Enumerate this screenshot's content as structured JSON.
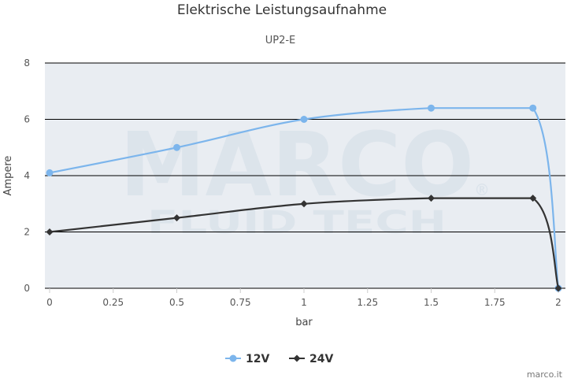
{
  "chart_data": {
    "type": "line",
    "title": "Elektrische Leistungsaufnahme",
    "subtitle": "UP2-E",
    "xlabel": "bar",
    "ylabel": "Ampere",
    "xlim": [
      0,
      2
    ],
    "ylim": [
      0,
      8
    ],
    "x_ticks": [
      "0",
      "0.25",
      "0.5",
      "0.75",
      "1",
      "1.25",
      "1.5",
      "1.75",
      "2"
    ],
    "y_ticks": [
      "0",
      "2",
      "4",
      "6",
      "8"
    ],
    "grid": true,
    "legend": "bottom-center",
    "watermark": {
      "line1": "MARCO",
      "line2": "FLUID TECH",
      "mark": "®"
    },
    "series": [
      {
        "name": "12V",
        "color": "#7cb5ec",
        "marker": "circle",
        "points": [
          {
            "x": 0,
            "y": 4.1
          },
          {
            "x": 0.5,
            "y": 5.0
          },
          {
            "x": 1.0,
            "y": 6.0
          },
          {
            "x": 1.5,
            "y": 6.4
          },
          {
            "x": 1.9,
            "y": 6.4
          },
          {
            "x": 2.0,
            "y": 0
          }
        ]
      },
      {
        "name": "24V",
        "color": "#333333",
        "marker": "diamond",
        "points": [
          {
            "x": 0,
            "y": 2.0
          },
          {
            "x": 0.5,
            "y": 2.5
          },
          {
            "x": 1.0,
            "y": 3.0
          },
          {
            "x": 1.5,
            "y": 3.2
          },
          {
            "x": 1.9,
            "y": 3.2
          },
          {
            "x": 2.0,
            "y": 0
          }
        ]
      }
    ],
    "credit": "marco.it"
  }
}
